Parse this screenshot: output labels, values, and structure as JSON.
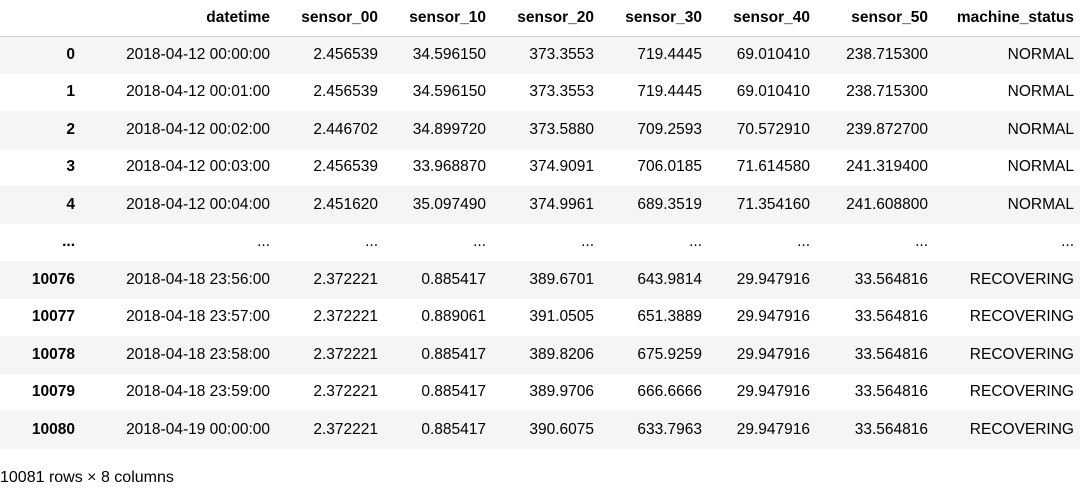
{
  "dataframe": {
    "columns": [
      "",
      "datetime",
      "sensor_00",
      "sensor_10",
      "sensor_20",
      "sensor_30",
      "sensor_40",
      "sensor_50",
      "machine_status"
    ],
    "rows": [
      [
        "0",
        "2018-04-12 00:00:00",
        "2.456539",
        "34.596150",
        "373.3553",
        "719.4445",
        "69.010410",
        "238.715300",
        "NORMAL"
      ],
      [
        "1",
        "2018-04-12 00:01:00",
        "2.456539",
        "34.596150",
        "373.3553",
        "719.4445",
        "69.010410",
        "238.715300",
        "NORMAL"
      ],
      [
        "2",
        "2018-04-12 00:02:00",
        "2.446702",
        "34.899720",
        "373.5880",
        "709.2593",
        "70.572910",
        "239.872700",
        "NORMAL"
      ],
      [
        "3",
        "2018-04-12 00:03:00",
        "2.456539",
        "33.968870",
        "374.9091",
        "706.0185",
        "71.614580",
        "241.319400",
        "NORMAL"
      ],
      [
        "4",
        "2018-04-12 00:04:00",
        "2.451620",
        "35.097490",
        "374.9961",
        "689.3519",
        "71.354160",
        "241.608800",
        "NORMAL"
      ],
      [
        "...",
        "...",
        "...",
        "...",
        "...",
        "...",
        "...",
        "...",
        "..."
      ],
      [
        "10076",
        "2018-04-18 23:56:00",
        "2.372221",
        "0.885417",
        "389.6701",
        "643.9814",
        "29.947916",
        "33.564816",
        "RECOVERING"
      ],
      [
        "10077",
        "2018-04-18 23:57:00",
        "2.372221",
        "0.889061",
        "391.0505",
        "651.3889",
        "29.947916",
        "33.564816",
        "RECOVERING"
      ],
      [
        "10078",
        "2018-04-18 23:58:00",
        "2.372221",
        "0.885417",
        "389.8206",
        "675.9259",
        "29.947916",
        "33.564816",
        "RECOVERING"
      ],
      [
        "10079",
        "2018-04-18 23:59:00",
        "2.372221",
        "0.885417",
        "389.9706",
        "666.6666",
        "29.947916",
        "33.564816",
        "RECOVERING"
      ],
      [
        "10080",
        "2018-04-19 00:00:00",
        "2.372221",
        "0.885417",
        "390.6075",
        "633.7963",
        "29.947916",
        "33.564816",
        "RECOVERING"
      ]
    ],
    "shape_text": "10081 rows × 8 columns"
  }
}
